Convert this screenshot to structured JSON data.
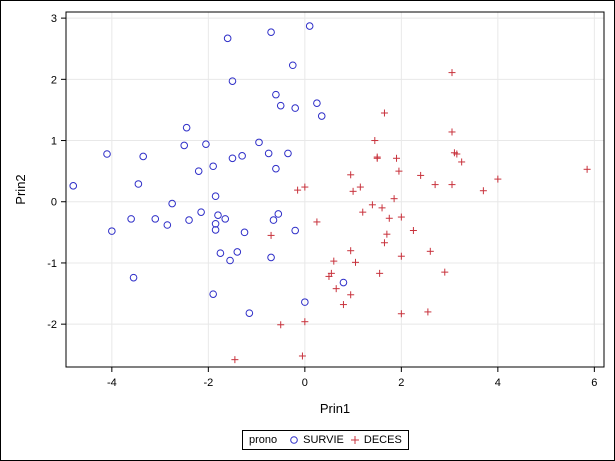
{
  "chart_data": {
    "type": "scatter",
    "title": "",
    "xlabel": "Prin1",
    "ylabel": "Prin2",
    "xlim": [
      -4.95,
      6.2
    ],
    "ylim": [
      -2.7,
      3.1
    ],
    "xticks": [
      -4,
      -2,
      0,
      2,
      4,
      6
    ],
    "yticks": [
      -2,
      -1,
      0,
      1,
      2,
      3
    ],
    "grid": true,
    "legend": {
      "title": "prono",
      "placement": "bottom-center"
    },
    "series": [
      {
        "name": "SURVIE",
        "marker": "circle",
        "color": "#2f2fc8",
        "points": [
          [
            -4.8,
            0.26
          ],
          [
            -4.1,
            0.78
          ],
          [
            -4.0,
            -0.48
          ],
          [
            -3.6,
            -0.28
          ],
          [
            -3.55,
            -1.24
          ],
          [
            -3.45,
            0.29
          ],
          [
            -3.35,
            0.74
          ],
          [
            -3.1,
            -0.28
          ],
          [
            -2.85,
            -0.38
          ],
          [
            -2.75,
            -0.03
          ],
          [
            -2.5,
            0.92
          ],
          [
            -2.45,
            1.21
          ],
          [
            -2.4,
            -0.3
          ],
          [
            -2.2,
            0.5
          ],
          [
            -2.15,
            -0.17
          ],
          [
            -2.05,
            0.94
          ],
          [
            -1.9,
            0.58
          ],
          [
            -1.9,
            -1.51
          ],
          [
            -1.85,
            0.09
          ],
          [
            -1.85,
            -0.36
          ],
          [
            -1.85,
            -0.46
          ],
          [
            -1.8,
            -0.22
          ],
          [
            -1.75,
            -0.84
          ],
          [
            -1.65,
            -0.28
          ],
          [
            -1.6,
            2.67
          ],
          [
            -1.55,
            -0.96
          ],
          [
            -1.5,
            1.97
          ],
          [
            -1.5,
            0.71
          ],
          [
            -1.4,
            -0.82
          ],
          [
            -1.3,
            0.75
          ],
          [
            -1.25,
            -0.5
          ],
          [
            -1.15,
            -1.82
          ],
          [
            -0.95,
            0.97
          ],
          [
            -0.75,
            0.79
          ],
          [
            -0.7,
            -0.91
          ],
          [
            -0.7,
            2.77
          ],
          [
            -0.65,
            -0.3
          ],
          [
            -0.6,
            1.75
          ],
          [
            -0.6,
            0.54
          ],
          [
            -0.55,
            -0.2
          ],
          [
            -0.5,
            1.57
          ],
          [
            -0.35,
            0.79
          ],
          [
            -0.25,
            2.23
          ],
          [
            -0.2,
            1.53
          ],
          [
            -0.2,
            -0.47
          ],
          [
            0.0,
            -1.64
          ],
          [
            0.1,
            2.87
          ],
          [
            0.25,
            1.61
          ],
          [
            0.35,
            1.4
          ],
          [
            0.8,
            -1.32
          ]
        ]
      },
      {
        "name": "DECES",
        "marker": "plus",
        "color": "#c8323c",
        "points": [
          [
            -1.45,
            -2.58
          ],
          [
            -0.7,
            -0.55
          ],
          [
            -0.5,
            -2.01
          ],
          [
            -0.15,
            0.19
          ],
          [
            -0.05,
            -2.52
          ],
          [
            0.0,
            -1.96
          ],
          [
            0.0,
            0.24
          ],
          [
            0.25,
            -0.33
          ],
          [
            0.5,
            -1.22
          ],
          [
            0.55,
            -1.17
          ],
          [
            0.6,
            -0.97
          ],
          [
            0.65,
            -1.42
          ],
          [
            0.8,
            -1.68
          ],
          [
            0.95,
            -0.8
          ],
          [
            0.95,
            -1.52
          ],
          [
            0.95,
            0.44
          ],
          [
            1.0,
            0.17
          ],
          [
            1.05,
            -0.99
          ],
          [
            1.15,
            0.24
          ],
          [
            1.2,
            -0.17
          ],
          [
            1.4,
            -0.05
          ],
          [
            1.45,
            1.0
          ],
          [
            1.5,
            0.71
          ],
          [
            1.5,
            0.73
          ],
          [
            1.55,
            -1.17
          ],
          [
            1.6,
            -0.1
          ],
          [
            1.65,
            -0.67
          ],
          [
            1.65,
            1.45
          ],
          [
            1.7,
            -0.53
          ],
          [
            1.75,
            -0.27
          ],
          [
            1.85,
            0.05
          ],
          [
            1.9,
            0.71
          ],
          [
            1.95,
            0.5
          ],
          [
            2.0,
            -0.89
          ],
          [
            2.0,
            -0.25
          ],
          [
            2.0,
            -1.83
          ],
          [
            2.25,
            -0.47
          ],
          [
            2.4,
            0.43
          ],
          [
            2.55,
            -1.8
          ],
          [
            2.6,
            -0.81
          ],
          [
            2.7,
            0.28
          ],
          [
            2.9,
            -1.15
          ],
          [
            3.05,
            0.28
          ],
          [
            3.05,
            2.11
          ],
          [
            3.05,
            1.14
          ],
          [
            3.1,
            0.8
          ],
          [
            3.15,
            0.78
          ],
          [
            3.25,
            0.65
          ],
          [
            3.7,
            0.18
          ],
          [
            4.0,
            0.37
          ],
          [
            5.85,
            0.53
          ]
        ]
      }
    ]
  },
  "style": {
    "frame_color": "#000000",
    "grid_color": "#e8e8e8",
    "background": "#ffffff"
  }
}
